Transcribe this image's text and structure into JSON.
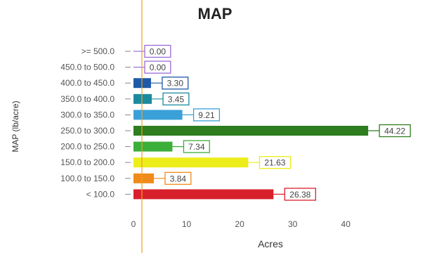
{
  "chart_data": {
    "type": "bar",
    "orientation": "horizontal",
    "title": "MAP",
    "xlabel": "Acres",
    "ylabel": "MAP (lb/acre)",
    "xlim": [
      0,
      45
    ],
    "xticks": [
      "0",
      "10",
      "20",
      "30",
      "40"
    ],
    "grid": false,
    "categories": [
      ">= 500.0",
      "450.0 to 500.0",
      "400.0 to 450.0",
      "350.0 to 400.0",
      "300.0 to 350.0",
      "250.0 to 300.0",
      "200.0 to 250.0",
      "150.0 to 200.0",
      "100.0 to 150.0",
      "< 100.0"
    ],
    "values": [
      0.0,
      0.0,
      3.3,
      3.45,
      9.21,
      44.22,
      7.34,
      21.63,
      3.84,
      26.38
    ],
    "value_labels": [
      "0.00",
      "0.00",
      "3.30",
      "3.45",
      "9.21",
      "44.22",
      "7.34",
      "21.63",
      "3.84",
      "26.38"
    ],
    "colors": [
      "#9b6bd6",
      "#9b6bd6",
      "#1f5aa6",
      "#1b8a9e",
      "#3aa0d8",
      "#2e7d1f",
      "#3cae3a",
      "#eded1a",
      "#f08a1a",
      "#d8202c"
    ],
    "reference_line_color": "#f0a020"
  }
}
